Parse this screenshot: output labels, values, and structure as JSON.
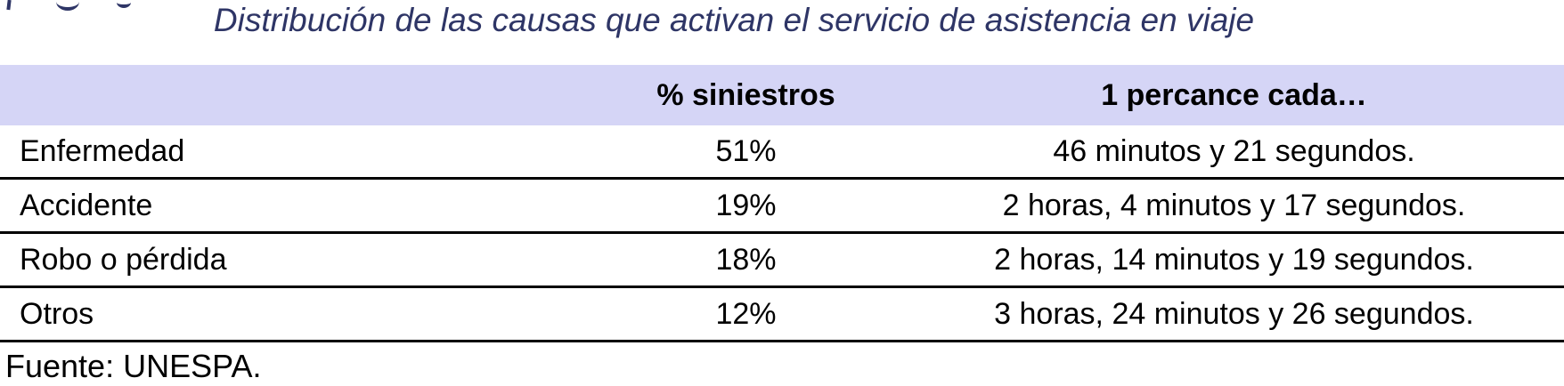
{
  "title": "Distribución de las causas que activan el servicio de asistencia en viaje",
  "table": {
    "headers": {
      "cause": "",
      "pct": "% siniestros",
      "freq": "1 percance cada…"
    },
    "rows": [
      {
        "cause": "Enfermedad",
        "pct": "51%",
        "freq": "46 minutos y 21 segundos."
      },
      {
        "cause": "Accidente",
        "pct": "19%",
        "freq": "2 horas, 4 minutos y 17 segundos."
      },
      {
        "cause": "Robo o pérdida",
        "pct": "18%",
        "freq": "2 horas, 14 minutos y 19 segundos."
      },
      {
        "cause": "Otros",
        "pct": "12%",
        "freq": "3 horas, 24 minutos y 26 segundos."
      }
    ]
  },
  "source": "Fuente: UNESPA.",
  "colors": {
    "header_bg": "#d5d5f6",
    "title_text": "#2e3566",
    "body_text": "#000000",
    "row_line": "#000000"
  },
  "chart_data": {
    "type": "table",
    "title": "Distribución de las causas que activan el servicio de asistencia en viaje",
    "categories": [
      "Enfermedad",
      "Accidente",
      "Robo o pérdida",
      "Otros"
    ],
    "series": [
      {
        "name": "% siniestros",
        "values": [
          51,
          19,
          18,
          12
        ]
      },
      {
        "name": "1 percance cada…",
        "values": [
          "46 minutos y 21 segundos.",
          "2 horas, 4 minutos y 17 segundos.",
          "2 horas, 14 minutos y 19 segundos.",
          "3 horas, 24 minutos y 26 segundos."
        ]
      }
    ]
  }
}
